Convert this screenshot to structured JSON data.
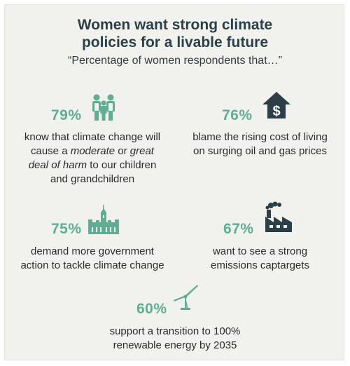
{
  "header": {
    "title_line1": "Women want strong climate",
    "title_line2": "policies for a livable future",
    "subtitle": "“Percentage of women respondents that…”"
  },
  "colors": {
    "accent_green": "#5fae94",
    "dark_slate": "#2b3f49",
    "panel_background": "#f1f2ee"
  },
  "stats": [
    {
      "percent": "79%",
      "icon": "family-icon",
      "text_lines": [
        "know that climate change will",
        "cause a ",
        "moderate",
        " or ",
        "great",
        "deal of harm",
        " to our children",
        "and grandchildren"
      ]
    },
    {
      "percent": "76%",
      "icon": "house-dollar-icon",
      "text_lines": [
        "blame the rising cost of living",
        "on surging oil and gas prices"
      ]
    },
    {
      "percent": "75%",
      "icon": "parliament-icon",
      "text_lines": [
        "demand more government",
        "action to tackle climate change"
      ]
    },
    {
      "percent": "67%",
      "icon": "factory-icon",
      "text_lines": [
        "want to see a strong",
        "emissions captargets"
      ]
    },
    {
      "percent": "60%",
      "icon": "wind-turbine-icon",
      "text_lines": [
        "support a transition to 100%",
        "renewable energy by 2035"
      ]
    }
  ]
}
